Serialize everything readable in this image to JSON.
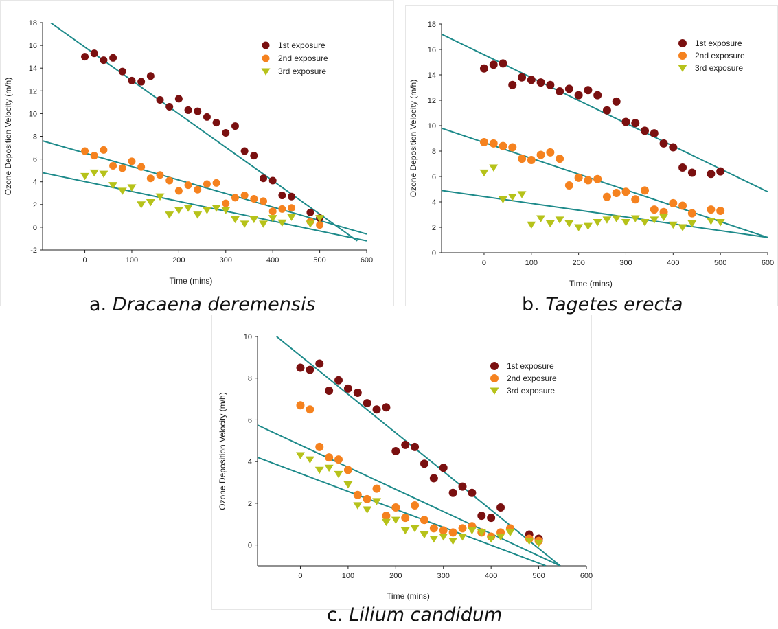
{
  "chart_data": [
    {
      "type": "scatter",
      "caption_letter": "a.",
      "caption_species": "Dracaena deremensis",
      "xlabel": "Time (mins)",
      "ylabel": "Ozone Deposition Velocity (m/h)",
      "xlim": [
        -90,
        600
      ],
      "ylim": [
        -2,
        18
      ],
      "xticks": [
        0,
        100,
        200,
        300,
        400,
        500,
        600
      ],
      "yticks": [
        -2,
        0,
        2,
        4,
        6,
        8,
        10,
        12,
        14,
        16,
        18
      ],
      "legend_position": "top-right",
      "series": [
        {
          "name": "1st exposure",
          "marker": "circle",
          "color": "#7a1010",
          "x": [
            0,
            20,
            40,
            60,
            80,
            100,
            120,
            140,
            160,
            180,
            200,
            220,
            240,
            260,
            280,
            300,
            320,
            340,
            360,
            380,
            400,
            420,
            440,
            480,
            500
          ],
          "y": [
            15.0,
            15.3,
            14.7,
            14.9,
            13.7,
            12.9,
            12.8,
            13.3,
            11.2,
            10.6,
            11.3,
            10.3,
            10.2,
            9.7,
            9.2,
            8.3,
            8.9,
            6.7,
            6.3,
            4.3,
            4.1,
            2.8,
            2.7,
            1.3,
            0.8
          ],
          "fit": [
            [
              -90,
              18.5
            ],
            [
              580,
              -1.2
            ]
          ]
        },
        {
          "name": "2nd exposure",
          "marker": "circle",
          "color": "#f5821f",
          "x": [
            0,
            20,
            40,
            60,
            80,
            100,
            120,
            140,
            160,
            180,
            200,
            220,
            240,
            260,
            280,
            300,
            320,
            340,
            360,
            380,
            400,
            420,
            440,
            480,
            500
          ],
          "y": [
            6.7,
            6.3,
            6.8,
            5.4,
            5.2,
            5.8,
            5.3,
            4.3,
            4.6,
            4.1,
            3.2,
            3.7,
            3.3,
            3.8,
            3.9,
            2.1,
            2.6,
            2.8,
            2.5,
            2.3,
            1.4,
            1.6,
            1.7,
            0.5,
            0.2
          ],
          "fit": [
            [
              -90,
              7.6
            ],
            [
              600,
              -0.6
            ]
          ]
        },
        {
          "name": "3rd exposure",
          "marker": "triangle-down",
          "color": "#b6c21a",
          "x": [
            0,
            20,
            40,
            60,
            80,
            100,
            120,
            140,
            160,
            180,
            200,
            220,
            240,
            260,
            280,
            300,
            320,
            340,
            360,
            380,
            400,
            420,
            440,
            480,
            500
          ],
          "y": [
            4.5,
            4.8,
            4.7,
            3.7,
            3.2,
            3.5,
            2.0,
            2.2,
            2.7,
            1.1,
            1.5,
            1.7,
            1.1,
            1.5,
            1.7,
            1.5,
            0.7,
            0.3,
            0.7,
            0.3,
            0.8,
            0.4,
            0.9,
            0.3,
            0.8
          ],
          "fit": [
            [
              -90,
              4.8
            ],
            [
              600,
              -1.2
            ]
          ]
        }
      ]
    },
    {
      "type": "scatter",
      "caption_letter": "b.",
      "caption_species": "Tagetes erecta",
      "xlabel": "Time (mins)",
      "ylabel": "Ozone Deposition Velocity (m/h)",
      "xlim": [
        -90,
        600
      ],
      "ylim": [
        0,
        18
      ],
      "xticks": [
        0,
        100,
        200,
        300,
        400,
        500,
        600
      ],
      "yticks": [
        0,
        2,
        4,
        6,
        8,
        10,
        12,
        14,
        16,
        18
      ],
      "legend_position": "top-right",
      "series": [
        {
          "name": "1st exposure",
          "marker": "circle",
          "color": "#7a1010",
          "x": [
            0,
            20,
            40,
            60,
            80,
            100,
            120,
            140,
            160,
            180,
            200,
            220,
            240,
            260,
            280,
            300,
            320,
            340,
            360,
            380,
            400,
            420,
            440,
            480,
            500
          ],
          "y": [
            14.5,
            14.8,
            14.9,
            13.2,
            13.8,
            13.6,
            13.4,
            13.2,
            12.7,
            12.9,
            12.4,
            12.8,
            12.4,
            11.2,
            11.9,
            10.3,
            10.2,
            9.6,
            9.4,
            8.6,
            8.3,
            6.7,
            6.3,
            6.2,
            6.4
          ],
          "fit": [
            [
              -90,
              17.2
            ],
            [
              600,
              4.8
            ]
          ]
        },
        {
          "name": "2nd exposure",
          "marker": "circle",
          "color": "#f5821f",
          "x": [
            0,
            20,
            40,
            60,
            80,
            100,
            120,
            140,
            160,
            180,
            200,
            220,
            240,
            260,
            280,
            300,
            320,
            340,
            360,
            380,
            400,
            420,
            440,
            480,
            500
          ],
          "y": [
            8.7,
            8.6,
            8.4,
            8.3,
            7.4,
            7.3,
            7.7,
            7.9,
            7.4,
            5.3,
            5.9,
            5.7,
            5.8,
            4.4,
            4.7,
            4.8,
            4.2,
            4.9,
            3.4,
            3.2,
            3.9,
            3.7,
            3.1,
            3.4,
            3.3
          ],
          "fit": [
            [
              -90,
              9.8
            ],
            [
              600,
              1.2
            ]
          ]
        },
        {
          "name": "3rd exposure",
          "marker": "triangle-down",
          "color": "#b6c21a",
          "x": [
            0,
            20,
            40,
            60,
            80,
            100,
            120,
            140,
            160,
            180,
            200,
            220,
            240,
            260,
            280,
            300,
            320,
            340,
            360,
            380,
            400,
            420,
            440,
            480,
            500
          ],
          "y": [
            6.3,
            6.7,
            4.2,
            4.4,
            4.6,
            2.2,
            2.7,
            2.3,
            2.6,
            2.3,
            2.0,
            2.1,
            2.4,
            2.6,
            2.7,
            2.4,
            2.7,
            2.4,
            2.6,
            2.8,
            2.2,
            2.0,
            2.3,
            2.5,
            2.4
          ],
          "fit": [
            [
              -90,
              4.9
            ],
            [
              600,
              1.2
            ]
          ]
        }
      ]
    },
    {
      "type": "scatter",
      "caption_letter": "c.",
      "caption_species": "Lilium candidum",
      "xlabel": "Time (mins)",
      "ylabel": "Ozone Deposition Velocity (m/h)",
      "xlim": [
        -90,
        600
      ],
      "ylim": [
        -1,
        10
      ],
      "xticks": [
        0,
        100,
        200,
        300,
        400,
        500,
        600
      ],
      "yticks": [
        0,
        2,
        4,
        6,
        8,
        10
      ],
      "legend_position": "top-right",
      "series": [
        {
          "name": "1st exposure",
          "marker": "circle",
          "color": "#7a1010",
          "x": [
            0,
            20,
            40,
            60,
            80,
            100,
            120,
            140,
            160,
            180,
            200,
            220,
            240,
            260,
            280,
            300,
            320,
            340,
            360,
            380,
            400,
            420,
            480,
            500
          ],
          "y": [
            8.5,
            8.4,
            8.7,
            7.4,
            7.9,
            7.5,
            7.3,
            6.8,
            6.5,
            6.6,
            4.5,
            4.8,
            4.7,
            3.9,
            3.2,
            3.7,
            2.5,
            2.8,
            2.5,
            1.4,
            1.3,
            1.8,
            0.5,
            0.3
          ],
          "fit": [
            [
              -50,
              10
            ],
            [
              545,
              -1
            ]
          ]
        },
        {
          "name": "2nd exposure",
          "marker": "circle",
          "color": "#f5821f",
          "x": [
            0,
            20,
            40,
            60,
            80,
            100,
            120,
            140,
            160,
            180,
            200,
            220,
            240,
            260,
            280,
            300,
            320,
            340,
            360,
            380,
            400,
            420,
            440,
            480,
            500
          ],
          "y": [
            6.7,
            6.5,
            4.7,
            4.2,
            4.1,
            3.6,
            2.4,
            2.2,
            2.7,
            1.4,
            1.8,
            1.3,
            1.9,
            1.2,
            0.8,
            0.7,
            0.6,
            0.8,
            0.9,
            0.6,
            0.4,
            0.6,
            0.8,
            0.3,
            0.2
          ],
          "fit": [
            [
              -90,
              5.75
            ],
            [
              545,
              -1
            ]
          ]
        },
        {
          "name": "3rd exposure",
          "marker": "triangle-down",
          "color": "#b6c21a",
          "x": [
            0,
            20,
            40,
            60,
            80,
            100,
            120,
            140,
            160,
            180,
            200,
            220,
            240,
            260,
            280,
            300,
            320,
            340,
            360,
            380,
            400,
            420,
            440,
            480,
            500
          ],
          "y": [
            4.3,
            4.1,
            3.6,
            3.7,
            3.4,
            2.9,
            1.9,
            1.7,
            2.1,
            1.1,
            1.2,
            0.7,
            0.8,
            0.5,
            0.3,
            0.4,
            0.2,
            0.4,
            0.7,
            0.6,
            0.3,
            0.4,
            0.6,
            0.2,
            0.1
          ],
          "fit": [
            [
              -90,
              4.2
            ],
            [
              515,
              -1
            ]
          ]
        }
      ]
    }
  ]
}
